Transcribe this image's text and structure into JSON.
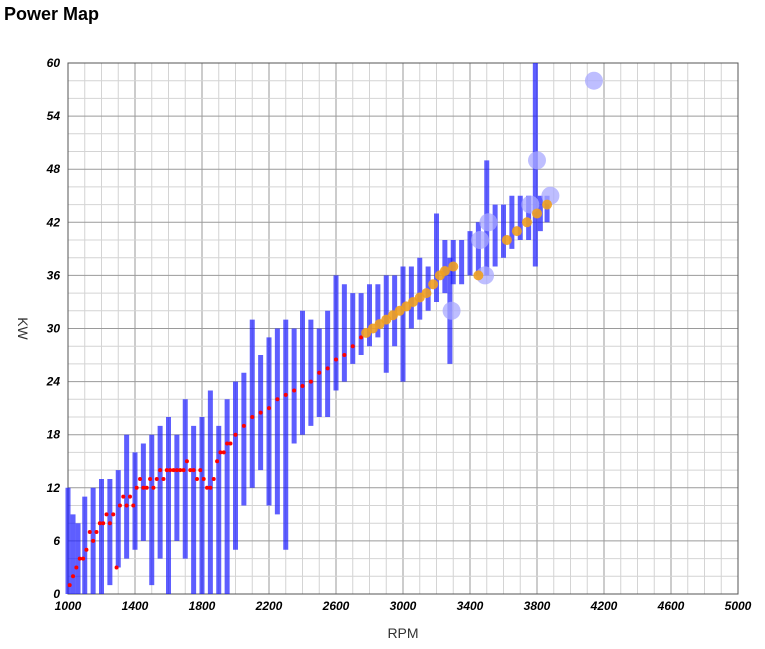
{
  "page": {
    "title": "Power Map"
  },
  "chart_data": {
    "type": "scatter",
    "title": "Power Map",
    "xlabel": "RPM",
    "ylabel": "KW",
    "xlim": [
      1000,
      5000
    ],
    "ylim": [
      0,
      60
    ],
    "x_ticks": [
      1000,
      1400,
      1800,
      2200,
      2600,
      3000,
      3400,
      3800,
      4200,
      4600,
      5000
    ],
    "y_ticks": [
      0,
      6,
      12,
      18,
      24,
      30,
      36,
      42,
      48,
      54,
      60
    ],
    "grid": true,
    "colors": {
      "range": "#1a1aff",
      "mean": "#ff0000",
      "high_mean": "#f0a020",
      "outlier": "#a8a8ff"
    },
    "series": [
      {
        "mark": "vertical-range",
        "points": [
          {
            "x": 1000,
            "low": 0,
            "high": 12
          },
          {
            "x": 1030,
            "low": 0,
            "high": 9
          },
          {
            "x": 1060,
            "low": 0,
            "high": 8
          },
          {
            "x": 1100,
            "low": 0,
            "high": 11
          },
          {
            "x": 1150,
            "low": 0,
            "high": 12
          },
          {
            "x": 1200,
            "low": 0,
            "high": 13
          },
          {
            "x": 1250,
            "low": 1,
            "high": 13
          },
          {
            "x": 1300,
            "low": 3,
            "high": 14
          },
          {
            "x": 1350,
            "low": 4,
            "high": 18
          },
          {
            "x": 1400,
            "low": 5,
            "high": 16
          },
          {
            "x": 1450,
            "low": 6,
            "high": 17
          },
          {
            "x": 1500,
            "low": 1,
            "high": 18
          },
          {
            "x": 1550,
            "low": 4,
            "high": 19
          },
          {
            "x": 1600,
            "low": 0,
            "high": 20
          },
          {
            "x": 1650,
            "low": 6,
            "high": 18
          },
          {
            "x": 1700,
            "low": 4,
            "high": 22
          },
          {
            "x": 1750,
            "low": 0,
            "high": 19
          },
          {
            "x": 1800,
            "low": 0,
            "high": 20
          },
          {
            "x": 1850,
            "low": 0,
            "high": 23
          },
          {
            "x": 1900,
            "low": 0,
            "high": 19
          },
          {
            "x": 1950,
            "low": 0,
            "high": 22
          },
          {
            "x": 2000,
            "low": 5,
            "high": 24
          },
          {
            "x": 2050,
            "low": 10,
            "high": 25
          },
          {
            "x": 2100,
            "low": 12,
            "high": 31
          },
          {
            "x": 2150,
            "low": 14,
            "high": 27
          },
          {
            "x": 2200,
            "low": 10,
            "high": 29
          },
          {
            "x": 2250,
            "low": 9,
            "high": 30
          },
          {
            "x": 2300,
            "low": 5,
            "high": 31
          },
          {
            "x": 2350,
            "low": 17,
            "high": 30
          },
          {
            "x": 2400,
            "low": 18,
            "high": 32
          },
          {
            "x": 2450,
            "low": 19,
            "high": 31
          },
          {
            "x": 2500,
            "low": 20,
            "high": 30
          },
          {
            "x": 2550,
            "low": 20,
            "high": 32
          },
          {
            "x": 2600,
            "low": 23,
            "high": 36
          },
          {
            "x": 2650,
            "low": 24,
            "high": 35
          },
          {
            "x": 2700,
            "low": 26,
            "high": 34
          },
          {
            "x": 2750,
            "low": 27,
            "high": 34
          },
          {
            "x": 2800,
            "low": 28,
            "high": 35
          },
          {
            "x": 2850,
            "low": 29,
            "high": 35
          },
          {
            "x": 2900,
            "low": 25,
            "high": 36
          },
          {
            "x": 2950,
            "low": 28,
            "high": 36
          },
          {
            "x": 3000,
            "low": 24,
            "high": 37
          },
          {
            "x": 3050,
            "low": 30,
            "high": 37
          },
          {
            "x": 3100,
            "low": 31,
            "high": 38
          },
          {
            "x": 3150,
            "low": 32,
            "high": 37
          },
          {
            "x": 3200,
            "low": 33,
            "high": 43
          },
          {
            "x": 3250,
            "low": 34,
            "high": 40
          },
          {
            "x": 3280,
            "low": 26,
            "high": 38
          },
          {
            "x": 3300,
            "low": 35,
            "high": 40
          },
          {
            "x": 3350,
            "low": 35,
            "high": 40
          },
          {
            "x": 3400,
            "low": 36,
            "high": 41
          },
          {
            "x": 3450,
            "low": 36,
            "high": 42
          },
          {
            "x": 3500,
            "low": 36,
            "high": 49
          },
          {
            "x": 3550,
            "low": 37,
            "high": 44
          },
          {
            "x": 3600,
            "low": 38,
            "high": 44
          },
          {
            "x": 3650,
            "low": 39,
            "high": 45
          },
          {
            "x": 3700,
            "low": 40,
            "high": 45
          },
          {
            "x": 3750,
            "low": 40,
            "high": 45
          },
          {
            "x": 3790,
            "low": 37,
            "high": 60
          },
          {
            "x": 3820,
            "low": 41,
            "high": 45
          },
          {
            "x": 3860,
            "low": 42,
            "high": 45
          }
        ]
      },
      {
        "mark": "small-dot",
        "points": [
          {
            "x": 1010,
            "y": 1
          },
          {
            "x": 1030,
            "y": 2
          },
          {
            "x": 1050,
            "y": 3
          },
          {
            "x": 1070,
            "y": 4
          },
          {
            "x": 1090,
            "y": 4
          },
          {
            "x": 1110,
            "y": 5
          },
          {
            "x": 1130,
            "y": 7
          },
          {
            "x": 1150,
            "y": 6
          },
          {
            "x": 1170,
            "y": 7
          },
          {
            "x": 1190,
            "y": 8
          },
          {
            "x": 1210,
            "y": 8
          },
          {
            "x": 1230,
            "y": 9
          },
          {
            "x": 1250,
            "y": 8
          },
          {
            "x": 1270,
            "y": 9
          },
          {
            "x": 1290,
            "y": 3
          },
          {
            "x": 1310,
            "y": 10
          },
          {
            "x": 1330,
            "y": 11
          },
          {
            "x": 1350,
            "y": 10
          },
          {
            "x": 1370,
            "y": 11
          },
          {
            "x": 1390,
            "y": 10
          },
          {
            "x": 1410,
            "y": 12
          },
          {
            "x": 1430,
            "y": 13
          },
          {
            "x": 1450,
            "y": 12
          },
          {
            "x": 1470,
            "y": 12
          },
          {
            "x": 1490,
            "y": 13
          },
          {
            "x": 1510,
            "y": 12
          },
          {
            "x": 1530,
            "y": 13
          },
          {
            "x": 1550,
            "y": 14
          },
          {
            "x": 1570,
            "y": 13
          },
          {
            "x": 1590,
            "y": 14
          },
          {
            "x": 1610,
            "y": 14
          },
          {
            "x": 1630,
            "y": 14
          },
          {
            "x": 1650,
            "y": 14
          },
          {
            "x": 1670,
            "y": 14
          },
          {
            "x": 1690,
            "y": 14
          },
          {
            "x": 1710,
            "y": 15
          },
          {
            "x": 1730,
            "y": 14
          },
          {
            "x": 1750,
            "y": 14
          },
          {
            "x": 1770,
            "y": 13
          },
          {
            "x": 1790,
            "y": 14
          },
          {
            "x": 1810,
            "y": 13
          },
          {
            "x": 1830,
            "y": 12
          },
          {
            "x": 1850,
            "y": 12
          },
          {
            "x": 1870,
            "y": 13
          },
          {
            "x": 1890,
            "y": 15
          },
          {
            "x": 1910,
            "y": 16
          },
          {
            "x": 1930,
            "y": 16
          },
          {
            "x": 1950,
            "y": 17
          },
          {
            "x": 1970,
            "y": 17
          },
          {
            "x": 2000,
            "y": 18
          },
          {
            "x": 2050,
            "y": 19
          },
          {
            "x": 2100,
            "y": 20
          },
          {
            "x": 2150,
            "y": 20.5
          },
          {
            "x": 2200,
            "y": 21
          },
          {
            "x": 2250,
            "y": 22
          },
          {
            "x": 2300,
            "y": 22.5
          },
          {
            "x": 2350,
            "y": 23
          },
          {
            "x": 2400,
            "y": 23.5
          },
          {
            "x": 2450,
            "y": 24
          },
          {
            "x": 2500,
            "y": 25
          },
          {
            "x": 2550,
            "y": 25.5
          },
          {
            "x": 2600,
            "y": 26.5
          },
          {
            "x": 2650,
            "y": 27
          },
          {
            "x": 2700,
            "y": 28
          },
          {
            "x": 2750,
            "y": 29
          }
        ]
      },
      {
        "mark": "medium-dot",
        "points": [
          {
            "x": 2780,
            "y": 29.5
          },
          {
            "x": 2820,
            "y": 30
          },
          {
            "x": 2860,
            "y": 30.5
          },
          {
            "x": 2900,
            "y": 31
          },
          {
            "x": 2940,
            "y": 31.5
          },
          {
            "x": 2980,
            "y": 32
          },
          {
            "x": 3020,
            "y": 32.5
          },
          {
            "x": 3060,
            "y": 33
          },
          {
            "x": 3100,
            "y": 33.5
          },
          {
            "x": 3140,
            "y": 34
          },
          {
            "x": 3180,
            "y": 35
          },
          {
            "x": 3220,
            "y": 36
          },
          {
            "x": 3250,
            "y": 36.5
          },
          {
            "x": 3300,
            "y": 37
          },
          {
            "x": 3450,
            "y": 36
          },
          {
            "x": 3620,
            "y": 40
          },
          {
            "x": 3680,
            "y": 41
          },
          {
            "x": 3740,
            "y": 42
          },
          {
            "x": 3800,
            "y": 43
          },
          {
            "x": 3860,
            "y": 44
          }
        ]
      },
      {
        "mark": "large-circle",
        "points": [
          {
            "x": 3290,
            "y": 32
          },
          {
            "x": 3460,
            "y": 40
          },
          {
            "x": 3510,
            "y": 42
          },
          {
            "x": 3490,
            "y": 36
          },
          {
            "x": 3760,
            "y": 44
          },
          {
            "x": 3800,
            "y": 49
          },
          {
            "x": 3880,
            "y": 45
          },
          {
            "x": 4140,
            "y": 58
          }
        ]
      }
    ]
  }
}
